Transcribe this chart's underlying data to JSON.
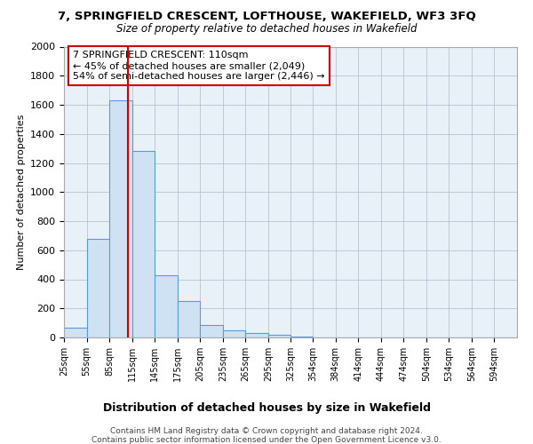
{
  "title": "7, SPRINGFIELD CRESCENT, LOFTHOUSE, WAKEFIELD, WF3 3FQ",
  "subtitle": "Size of property relative to detached houses in Wakefield",
  "xlabel": "Distribution of detached houses by size in Wakefield",
  "ylabel": "Number of detached properties",
  "bin_edges": [
    25,
    55,
    85,
    115,
    145,
    175,
    205,
    235,
    265,
    295,
    325,
    354,
    384,
    414,
    444,
    474,
    504,
    534,
    564,
    594,
    624
  ],
  "bar_heights": [
    65,
    680,
    1630,
    1280,
    430,
    250,
    85,
    50,
    30,
    20,
    5,
    2,
    2,
    1,
    1,
    0,
    0,
    0,
    0,
    0
  ],
  "bar_color": "#cfe2f3",
  "bar_edge_color": "#5b9bd5",
  "property_size": 110,
  "vline_color": "#cc0000",
  "annotation_line1": "7 SPRINGFIELD CRESCENT: 110sqm",
  "annotation_line2": "← 45% of detached houses are smaller (2,049)",
  "annotation_line3": "54% of semi-detached houses are larger (2,446) →",
  "annotation_box_color": "#cc0000",
  "ylim": [
    0,
    2000
  ],
  "yticks": [
    0,
    200,
    400,
    600,
    800,
    1000,
    1200,
    1400,
    1600,
    1800,
    2000
  ],
  "footer_line1": "Contains HM Land Registry data © Crown copyright and database right 2024.",
  "footer_line2": "Contains public sector information licensed under the Open Government Licence v3.0.",
  "bg_color": "#ffffff",
  "plot_bg_color": "#e8f0f8",
  "grid_color": "#b0b8c8"
}
